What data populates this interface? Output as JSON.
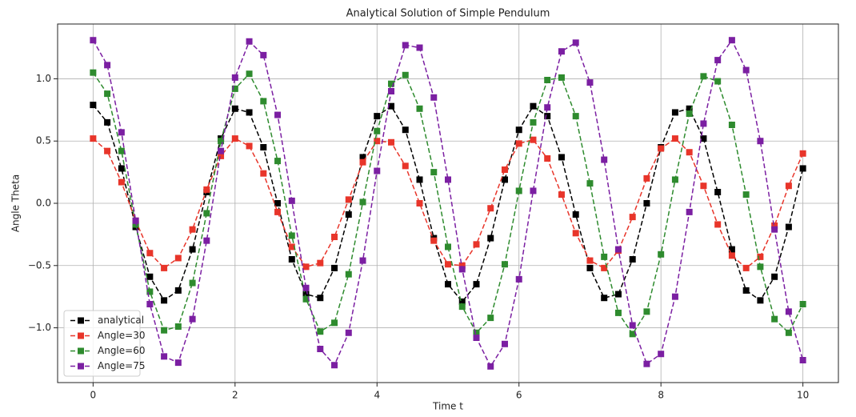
{
  "chart_data": {
    "type": "line",
    "title": "Analytical Solution of Simple Pendulum",
    "xlabel": "Time t",
    "ylabel": "Angle Theta",
    "x": [
      0,
      0.2,
      0.4,
      0.6,
      0.8,
      1,
      1.2,
      1.4,
      1.6,
      1.8,
      2,
      2.2,
      2.4,
      2.6,
      2.8,
      3,
      3.2,
      3.4,
      3.6,
      3.8,
      4,
      4.2,
      4.4,
      4.6,
      4.8,
      5,
      5.2,
      5.4,
      5.6,
      5.8,
      6,
      6.2,
      6.4,
      6.6,
      6.8,
      7,
      7.2,
      7.4,
      7.6,
      7.8,
      8,
      8.2,
      8.4,
      8.6,
      8.8,
      9,
      9.2,
      9.4,
      9.6,
      9.8,
      10
    ],
    "series": [
      {
        "name": "analytical",
        "color": "#000000",
        "values": [
          0.79,
          0.65,
          0.28,
          -0.19,
          -0.59,
          -0.78,
          -0.7,
          -0.37,
          0.09,
          0.52,
          0.76,
          0.73,
          0.45,
          0,
          -0.45,
          -0.73,
          -0.76,
          -0.52,
          -0.09,
          0.37,
          0.7,
          0.78,
          0.59,
          0.19,
          -0.28,
          -0.65,
          -0.79,
          -0.65,
          -0.28,
          0.19,
          0.59,
          0.78,
          0.7,
          0.37,
          -0.09,
          -0.52,
          -0.76,
          -0.73,
          -0.45,
          0,
          0.45,
          0.73,
          0.76,
          0.52,
          0.09,
          -0.37,
          -0.7,
          -0.78,
          -0.59,
          -0.19,
          0.28
        ]
      },
      {
        "name": "Angle=30",
        "color": "#e8352a",
        "values": [
          0.52,
          0.42,
          0.17,
          -0.14,
          -0.4,
          -0.52,
          -0.44,
          -0.21,
          0.11,
          0.38,
          0.52,
          0.46,
          0.24,
          -0.07,
          -0.35,
          -0.51,
          -0.48,
          -0.27,
          0.03,
          0.33,
          0.5,
          0.49,
          0.3,
          0,
          -0.3,
          -0.49,
          -0.5,
          -0.33,
          -0.04,
          0.27,
          0.48,
          0.51,
          0.36,
          0.07,
          -0.24,
          -0.46,
          -0.52,
          -0.38,
          -0.11,
          0.2,
          0.44,
          0.52,
          0.41,
          0.14,
          -0.17,
          -0.42,
          -0.52,
          -0.43,
          -0.18,
          0.14,
          0.4
        ]
      },
      {
        "name": "Angle=60",
        "color": "#2e8b2e",
        "values": [
          1.05,
          0.88,
          0.42,
          -0.17,
          -0.71,
          -1.02,
          -0.99,
          -0.64,
          -0.08,
          0.5,
          0.92,
          1.04,
          0.82,
          0.34,
          -0.26,
          -0.77,
          -1.03,
          -0.96,
          -0.57,
          0.01,
          0.58,
          0.96,
          1.03,
          0.76,
          0.25,
          -0.35,
          -0.83,
          -1.04,
          -0.92,
          -0.49,
          0.1,
          0.65,
          0.99,
          1.01,
          0.7,
          0.16,
          -0.43,
          -0.88,
          -1.05,
          -0.87,
          -0.41,
          0.19,
          0.72,
          1.02,
          0.98,
          0.63,
          0.07,
          -0.51,
          -0.93,
          -1.04,
          -0.81
        ]
      },
      {
        "name": "Angle=75",
        "color": "#7b1fa2",
        "values": [
          1.31,
          1.11,
          0.57,
          -0.14,
          -0.81,
          -1.23,
          -1.28,
          -0.93,
          -0.3,
          0.42,
          1.01,
          1.3,
          1.19,
          0.71,
          0.02,
          -0.68,
          -1.17,
          -1.3,
          -1.04,
          -0.46,
          0.26,
          0.9,
          1.27,
          1.25,
          0.85,
          0.19,
          -0.53,
          -1.08,
          -1.31,
          -1.13,
          -0.61,
          0.1,
          0.77,
          1.22,
          1.29,
          0.97,
          0.35,
          -0.37,
          -0.98,
          -1.29,
          -1.21,
          -0.75,
          -0.07,
          0.64,
          1.15,
          1.31,
          1.07,
          0.5,
          -0.21,
          -0.87,
          -1.26
        ]
      }
    ],
    "xlim": [
      -0.5,
      10.5
    ],
    "ylim": [
      -1.44,
      1.44
    ],
    "xticks": [
      0,
      2,
      4,
      6,
      8,
      10
    ],
    "yticks": [
      {
        "value": -1,
        "label": "−1.0"
      },
      {
        "value": -0.5,
        "label": "−0.5"
      },
      {
        "value": 0,
        "label": "0.0"
      },
      0.5,
      {
        "value": 1,
        "label": "1.0"
      }
    ],
    "grid": true,
    "legend": "lower left"
  }
}
